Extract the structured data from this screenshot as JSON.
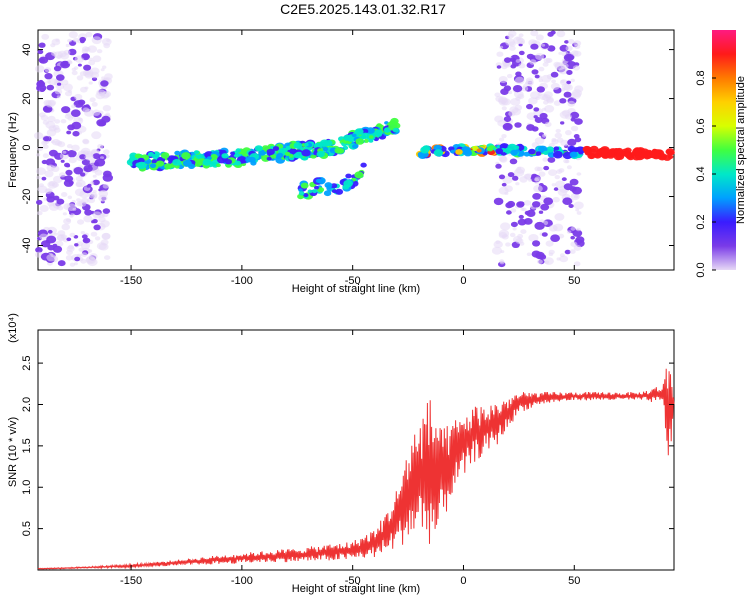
{
  "title": "C2E5.2025.143.01.32.R17",
  "chart_data": [
    {
      "type": "heatmap",
      "title": "C2E5.2025.143.01.32.R17",
      "xlabel": "Height of straight line (km)",
      "ylabel": "Frequency (Hz)",
      "xlim": [
        -192,
        95
      ],
      "ylim": [
        -50,
        48
      ],
      "xticks": [
        -150,
        -100,
        -50,
        0,
        50
      ],
      "yticks": [
        -40,
        -20,
        0,
        20,
        40
      ],
      "colorbar": {
        "label": "Normalized spectral amplitude",
        "range": [
          0.0,
          1.0
        ],
        "ticks": [
          0.0,
          0.2,
          0.4,
          0.6,
          0.8
        ],
        "colors": [
          "#e6d8f5",
          "#7a3be8",
          "#3a1cff",
          "#00a0ff",
          "#00e8c8",
          "#40ff40",
          "#d8ff00",
          "#ffd000",
          "#ff7a00",
          "#ff1a1a",
          "#ff1a80"
        ]
      },
      "ridges": [
        {
          "x": [
            -150,
            -100,
            -60,
            -40,
            -30
          ],
          "y": [
            -6,
            -4,
            0,
            6,
            10
          ]
        },
        {
          "x": [
            -75,
            -55,
            -45
          ],
          "y": [
            -18,
            -15,
            -10
          ]
        },
        {
          "x": [
            -20,
            0,
            20,
            55,
            95
          ],
          "y": [
            -2,
            -1,
            -1,
            -2,
            -3
          ]
        }
      ]
    },
    {
      "type": "line",
      "xlabel": "Height of straight line (km)",
      "ylabel": "SNR (10 * v/v)",
      "y_multiplier": "(x10⁴)",
      "xlim": [
        -192,
        95
      ],
      "ylim": [
        0,
        2.9
      ],
      "xticks": [
        -150,
        -100,
        -50,
        0,
        50
      ],
      "yticks": [
        0.5,
        1.0,
        1.5,
        2.0,
        2.5
      ],
      "ytick_labels": [
        "0.5",
        "1.0",
        "1.5",
        "2.0",
        "2.5"
      ],
      "color": "#ee3333",
      "envelope": {
        "x": [
          -192,
          -170,
          -150,
          -130,
          -110,
          -90,
          -70,
          -50,
          -40,
          -35,
          -30,
          -25,
          -20,
          -15,
          -12,
          -10,
          -5,
          0,
          5,
          10,
          15,
          20,
          25,
          35,
          50,
          80,
          90,
          93,
          95
        ],
        "y_low": [
          0.01,
          0.02,
          0.03,
          0.05,
          0.07,
          0.09,
          0.1,
          0.12,
          0.15,
          0.2,
          0.25,
          0.35,
          0.4,
          0.3,
          0.2,
          0.5,
          0.9,
          1.1,
          1.3,
          1.4,
          1.5,
          1.7,
          1.9,
          2.0,
          2.05,
          2.05,
          2.0,
          1.1,
          2.0
        ],
        "y_high": [
          0.02,
          0.04,
          0.07,
          0.12,
          0.18,
          0.23,
          0.28,
          0.35,
          0.5,
          0.7,
          1.0,
          1.5,
          1.9,
          2.1,
          2.05,
          1.7,
          1.8,
          1.9,
          2.0,
          2.0,
          2.05,
          2.1,
          2.15,
          2.15,
          2.15,
          2.15,
          2.25,
          2.7,
          2.1
        ]
      }
    }
  ]
}
